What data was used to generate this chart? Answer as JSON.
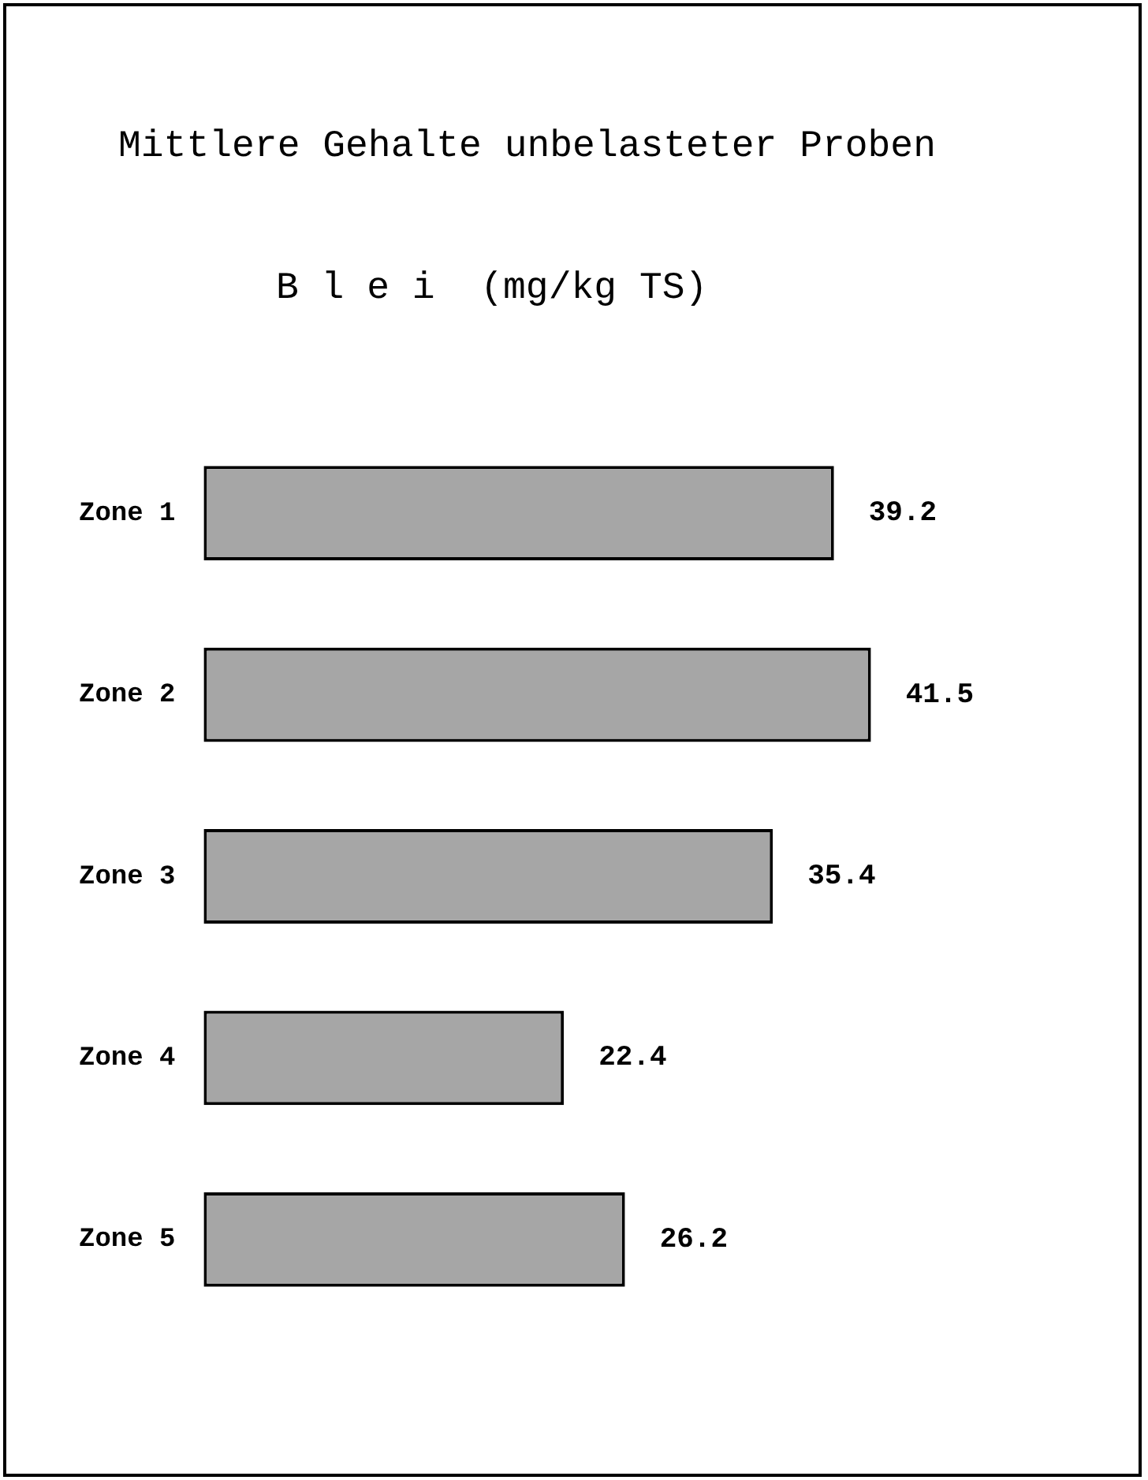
{
  "chart_data": {
    "type": "bar",
    "orientation": "horizontal",
    "title": "Mittlere Gehalte unbelasteter Proben",
    "subtitle": "B l e i  (mg/kg TS)",
    "categories": [
      "Zone 1",
      "Zone 2",
      "Zone 3",
      "Zone 4",
      "Zone 5"
    ],
    "values": [
      39.2,
      41.5,
      35.4,
      22.4,
      26.2
    ],
    "color": "#a6a6a6",
    "data_labels": true
  }
}
